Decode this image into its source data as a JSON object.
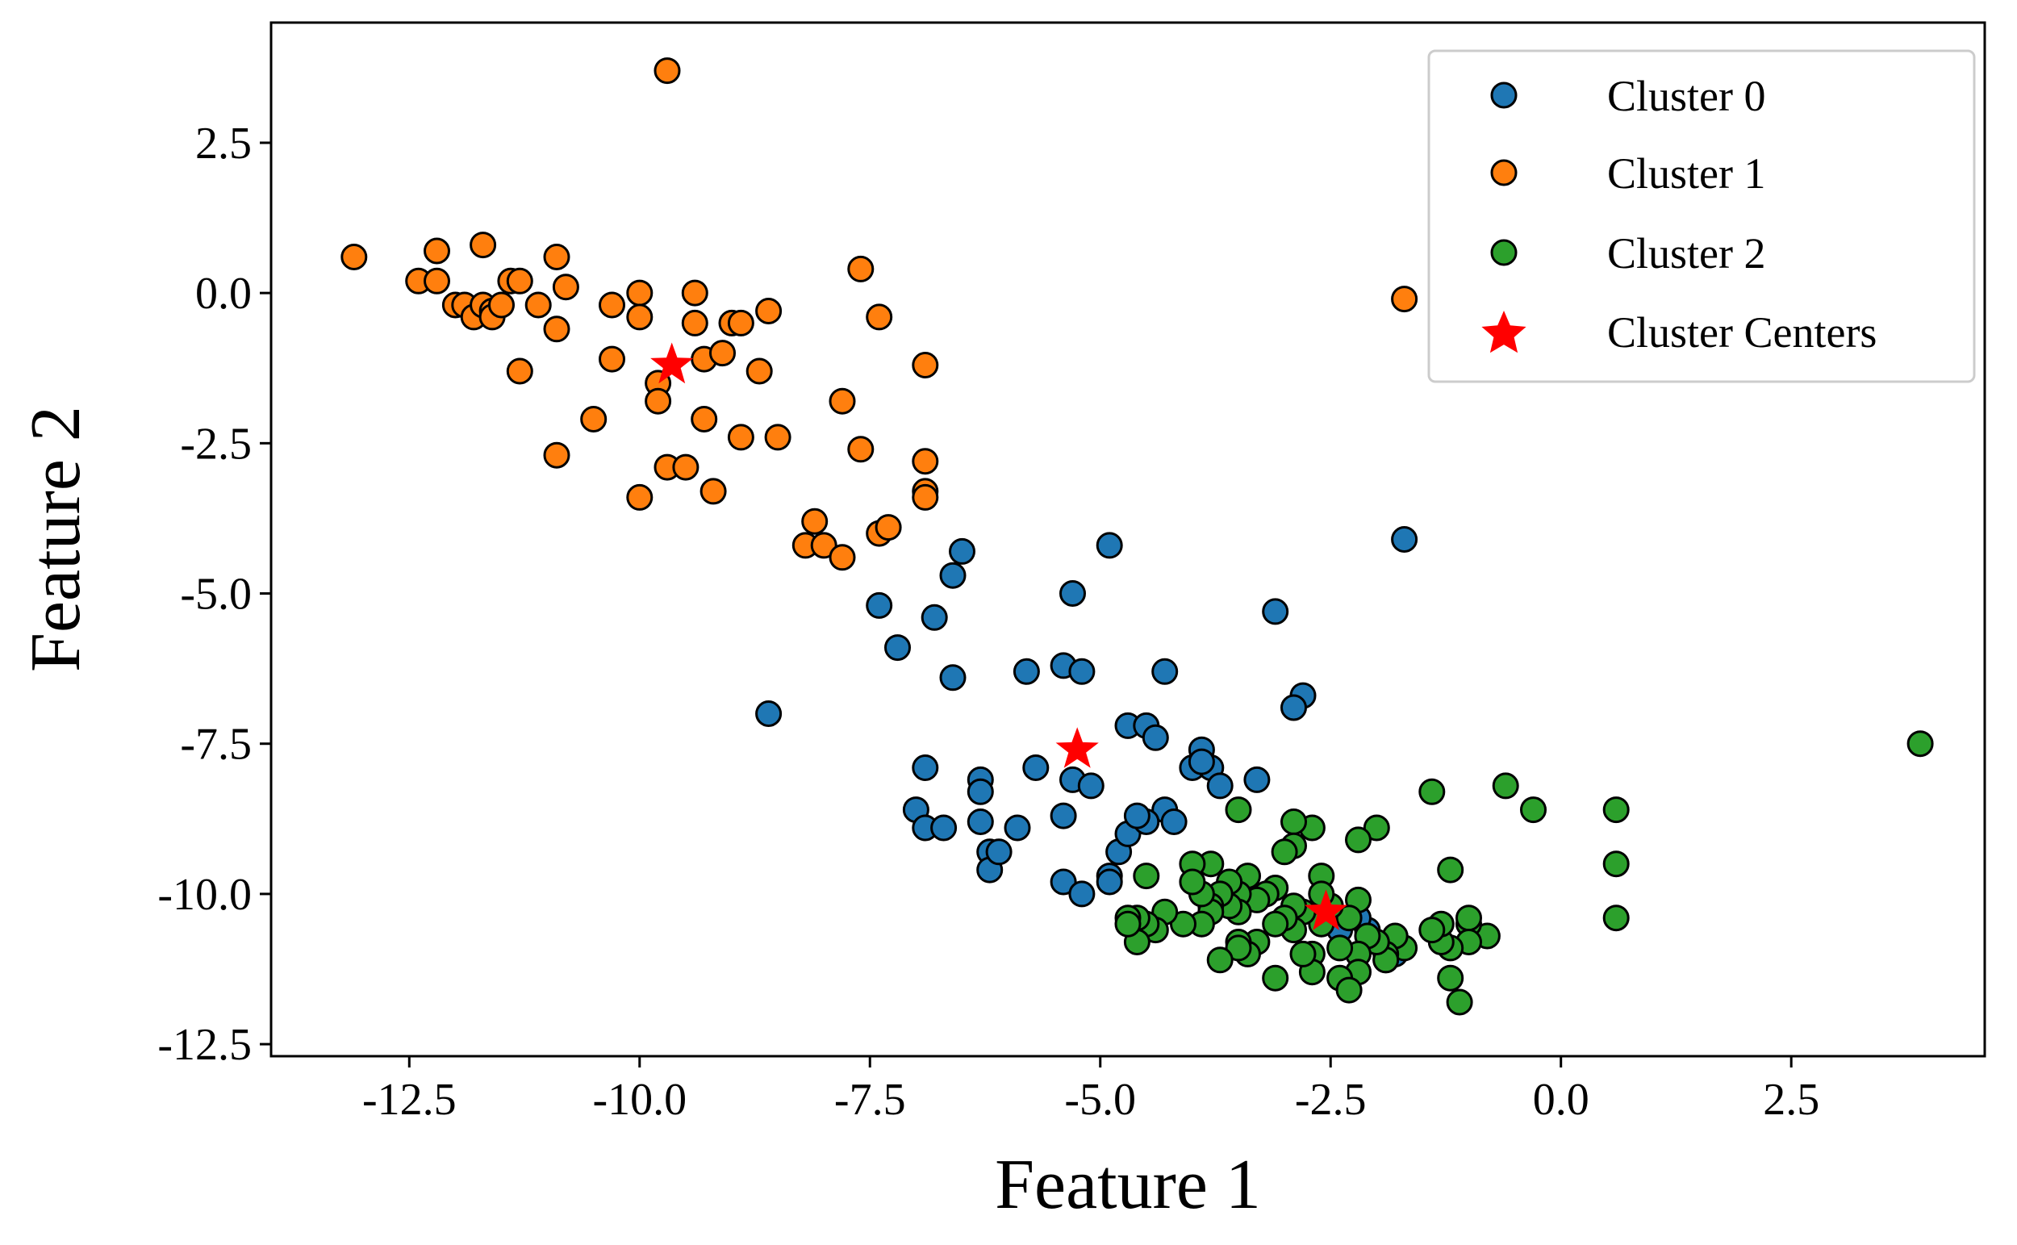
{
  "chart_data": {
    "type": "scatter",
    "title": "",
    "xlabel": "Feature 1",
    "ylabel": "Feature 2",
    "xlim": [
      -14.0,
      4.6
    ],
    "ylim": [
      -12.7,
      4.5
    ],
    "xticks": [
      -12.5,
      -10.0,
      -7.5,
      -5.0,
      -2.5,
      0.0,
      2.5
    ],
    "yticks": [
      2.5,
      0.0,
      -2.5,
      -5.0,
      -7.5,
      -10.0,
      -12.5
    ],
    "xtick_labels": [
      "-12.5",
      "-10.0",
      "-7.5",
      "-5.0",
      "-2.5",
      "0.0",
      "2.5"
    ],
    "ytick_labels": [
      "2.5",
      "0.0",
      "-2.5",
      "-5.0",
      "-7.5",
      "-10.0",
      "-12.5"
    ],
    "grid": false,
    "legend_position": "top-right",
    "series": [
      {
        "name": "Cluster 0",
        "color": "#1f77b4",
        "marker": "circle",
        "points": [
          [
            -8.6,
            -7.0
          ],
          [
            -7.4,
            -5.2
          ],
          [
            -7.2,
            -5.9
          ],
          [
            -6.8,
            -5.4
          ],
          [
            -6.6,
            -4.7
          ],
          [
            -6.5,
            -4.3
          ],
          [
            -6.6,
            -6.4
          ],
          [
            -7.0,
            -8.6
          ],
          [
            -6.9,
            -7.9
          ],
          [
            -6.9,
            -8.9
          ],
          [
            -6.7,
            -8.9
          ],
          [
            -6.3,
            -8.1
          ],
          [
            -6.3,
            -8.3
          ],
          [
            -6.3,
            -8.8
          ],
          [
            -6.2,
            -9.3
          ],
          [
            -6.2,
            -9.6
          ],
          [
            -6.1,
            -9.3
          ],
          [
            -5.9,
            -8.9
          ],
          [
            -5.7,
            -7.9
          ],
          [
            -5.8,
            -6.3
          ],
          [
            -5.4,
            -6.2
          ],
          [
            -5.2,
            -6.3
          ],
          [
            -5.3,
            -5.0
          ],
          [
            -4.9,
            -4.2
          ],
          [
            -5.3,
            -8.1
          ],
          [
            -5.1,
            -8.2
          ],
          [
            -5.4,
            -8.7
          ],
          [
            -5.4,
            -9.8
          ],
          [
            -5.2,
            -10.0
          ],
          [
            -4.9,
            -9.7
          ],
          [
            -4.9,
            -9.8
          ],
          [
            -4.8,
            -9.3
          ],
          [
            -4.7,
            -9.0
          ],
          [
            -4.7,
            -7.2
          ],
          [
            -4.5,
            -7.2
          ],
          [
            -4.4,
            -7.4
          ],
          [
            -4.3,
            -6.3
          ],
          [
            -4.3,
            -8.6
          ],
          [
            -4.2,
            -8.8
          ],
          [
            -4.5,
            -8.8
          ],
          [
            -4.6,
            -8.7
          ],
          [
            -4.0,
            -7.9
          ],
          [
            -3.9,
            -7.6
          ],
          [
            -3.8,
            -7.9
          ],
          [
            -3.9,
            -7.8
          ],
          [
            -3.7,
            -8.2
          ],
          [
            -3.3,
            -8.1
          ],
          [
            -3.1,
            -5.3
          ],
          [
            -2.8,
            -6.7
          ],
          [
            -2.9,
            -6.9
          ],
          [
            -1.7,
            -4.1
          ],
          [
            -1.9,
            -11.1
          ],
          [
            -1.8,
            -11.0
          ],
          [
            -2.1,
            -10.6
          ],
          [
            -2.2,
            -10.4
          ],
          [
            -2.4,
            -10.6
          ]
        ]
      },
      {
        "name": "Cluster 1",
        "color": "#ff7f0e",
        "marker": "circle",
        "points": [
          [
            -13.1,
            0.6
          ],
          [
            -12.4,
            0.2
          ],
          [
            -12.2,
            0.2
          ],
          [
            -12.2,
            0.7
          ],
          [
            -12.0,
            -0.2
          ],
          [
            -11.9,
            -0.2
          ],
          [
            -11.8,
            -0.4
          ],
          [
            -11.7,
            -0.2
          ],
          [
            -11.6,
            -0.3
          ],
          [
            -11.6,
            -0.4
          ],
          [
            -11.5,
            -0.2
          ],
          [
            -11.7,
            0.8
          ],
          [
            -11.4,
            0.2
          ],
          [
            -11.3,
            0.2
          ],
          [
            -11.1,
            -0.2
          ],
          [
            -11.3,
            -1.3
          ],
          [
            -10.9,
            0.6
          ],
          [
            -10.9,
            -0.6
          ],
          [
            -10.8,
            0.1
          ],
          [
            -10.9,
            -2.7
          ],
          [
            -10.5,
            -2.1
          ],
          [
            -10.3,
            -0.2
          ],
          [
            -10.3,
            -1.1
          ],
          [
            -10.0,
            0.0
          ],
          [
            -10.0,
            -0.4
          ],
          [
            -10.0,
            -3.4
          ],
          [
            -9.8,
            -1.5
          ],
          [
            -9.8,
            -1.8
          ],
          [
            -9.7,
            3.7
          ],
          [
            -9.7,
            -2.9
          ],
          [
            -9.5,
            -2.9
          ],
          [
            -9.4,
            0.0
          ],
          [
            -9.4,
            -0.5
          ],
          [
            -9.3,
            -1.1
          ],
          [
            -9.3,
            -2.1
          ],
          [
            -9.2,
            -3.3
          ],
          [
            -9.1,
            -1.0
          ],
          [
            -9.0,
            -0.5
          ],
          [
            -8.9,
            -0.5
          ],
          [
            -8.9,
            -2.4
          ],
          [
            -8.7,
            -1.3
          ],
          [
            -8.6,
            -0.3
          ],
          [
            -8.5,
            -2.4
          ],
          [
            -8.1,
            -3.8
          ],
          [
            -8.2,
            -4.2
          ],
          [
            -8.0,
            -4.2
          ],
          [
            -7.8,
            -4.4
          ],
          [
            -7.8,
            -1.8
          ],
          [
            -7.6,
            0.4
          ],
          [
            -7.6,
            -2.6
          ],
          [
            -7.4,
            -0.4
          ],
          [
            -7.4,
            -4.0
          ],
          [
            -7.3,
            -3.9
          ],
          [
            -6.9,
            -1.2
          ],
          [
            -6.9,
            -2.8
          ],
          [
            -6.9,
            -3.3
          ],
          [
            -6.9,
            -3.4
          ],
          [
            -1.7,
            -0.1
          ]
        ]
      },
      {
        "name": "Cluster 2",
        "color": "#2ca02c",
        "marker": "circle",
        "points": [
          [
            3.9,
            -7.5
          ],
          [
            0.6,
            -8.6
          ],
          [
            0.6,
            -9.5
          ],
          [
            0.6,
            -10.4
          ],
          [
            -0.3,
            -8.6
          ],
          [
            -0.6,
            -8.2
          ],
          [
            -0.8,
            -10.7
          ],
          [
            -1.0,
            -10.5
          ],
          [
            -1.0,
            -10.4
          ],
          [
            -1.0,
            -10.8
          ],
          [
            -1.1,
            -11.8
          ],
          [
            -1.2,
            -11.4
          ],
          [
            -1.2,
            -9.6
          ],
          [
            -1.2,
            -10.9
          ],
          [
            -1.3,
            -10.8
          ],
          [
            -1.3,
            -10.5
          ],
          [
            -1.4,
            -10.6
          ],
          [
            -1.4,
            -8.3
          ],
          [
            -1.7,
            -10.9
          ],
          [
            -1.8,
            -10.7
          ],
          [
            -1.9,
            -11.0
          ],
          [
            -1.9,
            -11.1
          ],
          [
            -2.0,
            -10.8
          ],
          [
            -2.0,
            -8.9
          ],
          [
            -2.1,
            -10.7
          ],
          [
            -2.2,
            -9.1
          ],
          [
            -2.2,
            -10.1
          ],
          [
            -2.2,
            -11.0
          ],
          [
            -2.2,
            -11.3
          ],
          [
            -2.3,
            -10.4
          ],
          [
            -2.4,
            -10.9
          ],
          [
            -2.4,
            -11.4
          ],
          [
            -2.3,
            -11.6
          ],
          [
            -2.5,
            -10.2
          ],
          [
            -2.6,
            -9.7
          ],
          [
            -2.6,
            -10.0
          ],
          [
            -2.6,
            -10.5
          ],
          [
            -2.7,
            -11.0
          ],
          [
            -2.7,
            -11.3
          ],
          [
            -2.7,
            -8.9
          ],
          [
            -2.8,
            -10.3
          ],
          [
            -2.8,
            -11.0
          ],
          [
            -2.9,
            -8.8
          ],
          [
            -2.9,
            -9.2
          ],
          [
            -2.9,
            -10.2
          ],
          [
            -2.9,
            -10.6
          ],
          [
            -3.0,
            -9.3
          ],
          [
            -3.0,
            -10.4
          ],
          [
            -3.1,
            -9.9
          ],
          [
            -3.1,
            -10.5
          ],
          [
            -3.1,
            -11.4
          ],
          [
            -3.2,
            -10.0
          ],
          [
            -3.3,
            -10.8
          ],
          [
            -3.3,
            -10.1
          ],
          [
            -3.4,
            -9.7
          ],
          [
            -3.4,
            -11.0
          ],
          [
            -3.5,
            -8.6
          ],
          [
            -3.5,
            -10.0
          ],
          [
            -3.5,
            -10.3
          ],
          [
            -3.5,
            -10.8
          ],
          [
            -3.5,
            -10.9
          ],
          [
            -3.6,
            -9.8
          ],
          [
            -3.6,
            -10.2
          ],
          [
            -3.7,
            -10.0
          ],
          [
            -3.7,
            -11.1
          ],
          [
            -3.8,
            -9.5
          ],
          [
            -3.8,
            -10.2
          ],
          [
            -3.8,
            -10.3
          ],
          [
            -3.9,
            -10.0
          ],
          [
            -3.9,
            -10.5
          ],
          [
            -4.0,
            -9.5
          ],
          [
            -4.0,
            -9.8
          ],
          [
            -4.1,
            -10.5
          ],
          [
            -4.3,
            -10.3
          ],
          [
            -4.4,
            -10.6
          ],
          [
            -4.5,
            -10.5
          ],
          [
            -4.5,
            -9.7
          ],
          [
            -4.6,
            -10.4
          ],
          [
            -4.6,
            -10.8
          ],
          [
            -4.7,
            -10.4
          ],
          [
            -4.7,
            -10.5
          ]
        ]
      }
    ],
    "centers": {
      "name": "Cluster Centers",
      "color": "#ff0000",
      "marker": "star",
      "points": [
        [
          -9.65,
          -1.2
        ],
        [
          -5.25,
          -7.6
        ],
        [
          -2.55,
          -10.3
        ]
      ]
    }
  }
}
